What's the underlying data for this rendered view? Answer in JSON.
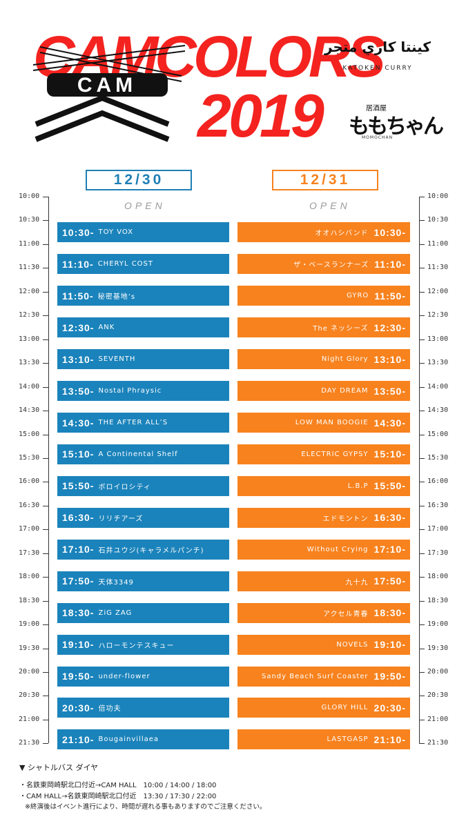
{
  "header": {
    "logo_main": "CAM",
    "title_colors": "CAMCOLORS",
    "title_year": "2019",
    "sponsor1_ar": "كينتا كاري متجر",
    "sponsor1_en": "KATOKEN CURRY",
    "sponsor2_small": "居酒屋",
    "sponsor2_main": "ももちゃん",
    "sponsor2_en": "MOMOCHAN"
  },
  "days": {
    "day1": "12/30",
    "day2": "12/31",
    "open": "OPEN"
  },
  "times": [
    "10:00",
    "10:30",
    "11:00",
    "11:30",
    "12:00",
    "12:30",
    "13:00",
    "13:30",
    "14:00",
    "14:30",
    "15:00",
    "15:30",
    "16:00",
    "16:30",
    "17:00",
    "17:30",
    "18:00",
    "18:30",
    "19:00",
    "19:30",
    "20:00",
    "20:30",
    "21:00",
    "21:30"
  ],
  "day1_slots": [
    {
      "time": "10:30-",
      "name": "TOY VOX"
    },
    {
      "time": "11:10-",
      "name": "CHERYL COST"
    },
    {
      "time": "11:50-",
      "name": "秘密基地’s"
    },
    {
      "time": "12:30-",
      "name": "ANK"
    },
    {
      "time": "13:10-",
      "name": "SEVENTH"
    },
    {
      "time": "13:50-",
      "name": "Nostal Phraysic"
    },
    {
      "time": "14:30-",
      "name": "THE AFTER ALL’S"
    },
    {
      "time": "15:10-",
      "name": "A Continental Shelf"
    },
    {
      "time": "15:50-",
      "name": "ボロイロシティ"
    },
    {
      "time": "16:30-",
      "name": "リリチアーズ"
    },
    {
      "time": "17:10-",
      "name": "石井ユウジ(キャラメルパンチ)"
    },
    {
      "time": "17:50-",
      "name": "天体3349"
    },
    {
      "time": "18:30-",
      "name": "ZiG ZAG"
    },
    {
      "time": "19:10-",
      "name": "ハローモンテスキュー"
    },
    {
      "time": "19:50-",
      "name": "under-flower"
    },
    {
      "time": "20:30-",
      "name": "倍功夫"
    },
    {
      "time": "21:10-",
      "name": "Bougainvillaea"
    }
  ],
  "day2_slots": [
    {
      "time": "10:30-",
      "name": "オオハシバンド"
    },
    {
      "time": "11:10-",
      "name": "ザ・ベースランナーズ"
    },
    {
      "time": "11:50-",
      "name": "GYRO"
    },
    {
      "time": "12:30-",
      "name": "The ネッシーズ"
    },
    {
      "time": "13:10-",
      "name": "Night Glory"
    },
    {
      "time": "13:50-",
      "name": "DAY DREAM"
    },
    {
      "time": "14:30-",
      "name": "LOW MAN BOOGIE"
    },
    {
      "time": "15:10-",
      "name": "ELECTRIC GYPSY"
    },
    {
      "time": "15:50-",
      "name": "L.B.P"
    },
    {
      "time": "16:30-",
      "name": "エドモントン"
    },
    {
      "time": "17:10-",
      "name": "Without Crying"
    },
    {
      "time": "17:50-",
      "name": "九十九"
    },
    {
      "time": "18:30-",
      "name": "アクセル青春"
    },
    {
      "time": "19:10-",
      "name": "NOVELS"
    },
    {
      "time": "19:50-",
      "name": "Sandy Beach Surf Coaster"
    },
    {
      "time": "20:30-",
      "name": "GLORY HILL"
    },
    {
      "time": "21:10-",
      "name": "LASTGASP"
    }
  ],
  "footer": {
    "title": "▼ シャトルバス ダイヤ",
    "line1": "・名鉄東岡崎駅北口付近→CAM HALL　10:00 / 14:00 / 18:00",
    "line2": "・CAM HALL→名鉄東岡崎駅北口付近　13:30 / 17:30 / 22:00",
    "note": "※終演後はイベント進行により、時間が遅れる事もありますのでご注意ください。"
  },
  "colors": {
    "day1": "#1b83bb",
    "day2": "#f7821e",
    "title": "#f4231f"
  }
}
